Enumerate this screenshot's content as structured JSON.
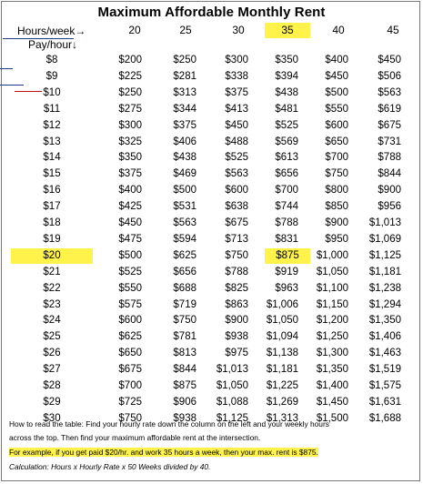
{
  "title": "Maximum Affordable Monthly Rent",
  "header": {
    "hours_label": "Hours/week→",
    "pay_label": "Pay/hour↓"
  },
  "hours": [
    "20",
    "25",
    "30",
    "35",
    "40",
    "45"
  ],
  "highlight": {
    "hours_index": 3,
    "pay_index": 12
  },
  "rows": [
    {
      "pay": "$8",
      "values": [
        "$200",
        "$250",
        "$300",
        "$350",
        "$400",
        "$450"
      ]
    },
    {
      "pay": "$9",
      "values": [
        "$225",
        "$281",
        "$338",
        "$394",
        "$450",
        "$506"
      ]
    },
    {
      "pay": "$10",
      "values": [
        "$250",
        "$313",
        "$375",
        "$438",
        "$500",
        "$563"
      ]
    },
    {
      "pay": "$11",
      "values": [
        "$275",
        "$344",
        "$413",
        "$481",
        "$550",
        "$619"
      ]
    },
    {
      "pay": "$12",
      "values": [
        "$300",
        "$375",
        "$450",
        "$525",
        "$600",
        "$675"
      ]
    },
    {
      "pay": "$13",
      "values": [
        "$325",
        "$406",
        "$488",
        "$569",
        "$650",
        "$731"
      ]
    },
    {
      "pay": "$14",
      "values": [
        "$350",
        "$438",
        "$525",
        "$613",
        "$700",
        "$788"
      ]
    },
    {
      "pay": "$15",
      "values": [
        "$375",
        "$469",
        "$563",
        "$656",
        "$750",
        "$844"
      ]
    },
    {
      "pay": "$16",
      "values": [
        "$400",
        "$500",
        "$600",
        "$700",
        "$800",
        "$900"
      ]
    },
    {
      "pay": "$17",
      "values": [
        "$425",
        "$531",
        "$638",
        "$744",
        "$850",
        "$956"
      ]
    },
    {
      "pay": "$18",
      "values": [
        "$450",
        "$563",
        "$675",
        "$788",
        "$900",
        "$1,013"
      ]
    },
    {
      "pay": "$19",
      "values": [
        "$475",
        "$594",
        "$713",
        "$831",
        "$950",
        "$1,069"
      ]
    },
    {
      "pay": "$20",
      "values": [
        "$500",
        "$625",
        "$750",
        "$875",
        "$1,000",
        "$1,125"
      ]
    },
    {
      "pay": "$21",
      "values": [
        "$525",
        "$656",
        "$788",
        "$919",
        "$1,050",
        "$1,181"
      ]
    },
    {
      "pay": "$22",
      "values": [
        "$550",
        "$688",
        "$825",
        "$963",
        "$1,100",
        "$1,238"
      ]
    },
    {
      "pay": "$23",
      "values": [
        "$575",
        "$719",
        "$863",
        "$1,006",
        "$1,150",
        "$1,294"
      ]
    },
    {
      "pay": "$24",
      "values": [
        "$600",
        "$750",
        "$900",
        "$1,050",
        "$1,200",
        "$1,350"
      ]
    },
    {
      "pay": "$25",
      "values": [
        "$625",
        "$781",
        "$938",
        "$1,094",
        "$1,250",
        "$1,406"
      ]
    },
    {
      "pay": "$26",
      "values": [
        "$650",
        "$813",
        "$975",
        "$1,138",
        "$1,300",
        "$1,463"
      ]
    },
    {
      "pay": "$27",
      "values": [
        "$675",
        "$844",
        "$1,013",
        "$1,181",
        "$1,350",
        "$1,519"
      ]
    },
    {
      "pay": "$28",
      "values": [
        "$700",
        "$875",
        "$1,050",
        "$1,225",
        "$1,400",
        "$1,575"
      ]
    },
    {
      "pay": "$29",
      "values": [
        "$725",
        "$906",
        "$1,088",
        "$1,269",
        "$1,450",
        "$1,631"
      ]
    },
    {
      "pay": "$30",
      "values": [
        "$750",
        "$938",
        "$1,125",
        "$1,313",
        "$1,500",
        "$1,688"
      ]
    }
  ],
  "notes": {
    "line1": "How to read the table: Find your hourly rate down the column on the left and your weekly hours",
    "line2": "across the top. Then find your maximum affordable rent at the intersection.",
    "example": "For example, if you get paid $20/hr. and work 35 hours a week, then your max. rent is $875.",
    "calculation": "Calculation: Hours x Hourly Rate x 50 Weeks divided by 40."
  }
}
